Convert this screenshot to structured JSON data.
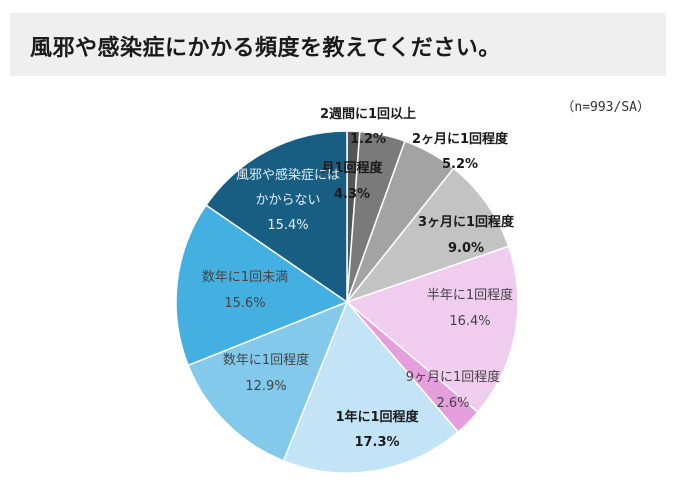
{
  "title": "風邪や感染症にかかる頻度を教えてください。",
  "note": "（n=993/SA）",
  "chart_data": {
    "type": "pie",
    "start": "12 o'clock",
    "direction": "clockwise",
    "slices": [
      {
        "label": "2週間に1回以上",
        "value": 1.2,
        "display": "1.2%",
        "color": "#555555",
        "label_color": "#1a1a1a",
        "bold": true
      },
      {
        "label": "月1回程度",
        "value": 4.3,
        "display": "4.3%",
        "color": "#7a7a7a",
        "label_color": "#1a1a1a",
        "bold": true
      },
      {
        "label": "2ヶ月に1回程度",
        "value": 5.2,
        "display": "5.2%",
        "color": "#a3a3a3",
        "label_color": "#1a1a1a",
        "bold": true
      },
      {
        "label": "3ヶ月に1回程度",
        "value": 9.0,
        "display": "9.0%",
        "color": "#c3c3c3",
        "label_color": "#1a1a1a",
        "bold": true
      },
      {
        "label": "半年に1回程度",
        "value": 16.4,
        "display": "16.4%",
        "color": "#f0cdee",
        "label_color": "#444444",
        "bold": false
      },
      {
        "label": "9ヶ月に1回程度",
        "value": 2.6,
        "display": "2.6%",
        "color": "#e59fdc",
        "label_color": "#444444",
        "bold": false
      },
      {
        "label": "1年に1回程度",
        "value": 17.3,
        "display": "17.3%",
        "color": "#c3e4f6",
        "label_color": "#1a1a1a",
        "bold": true
      },
      {
        "label": "数年に1回程度",
        "value": 12.9,
        "display": "12.9%",
        "color": "#82c9ec",
        "label_color": "#444444",
        "bold": false
      },
      {
        "label": "数年に1回未満",
        "value": 15.6,
        "display": "15.6%",
        "color": "#44b0e2",
        "label_color": "#444444",
        "bold": false
      },
      {
        "label": "風邪や感染症には\nかからない",
        "value": 15.4,
        "display": "15.4%",
        "color": "#175e82",
        "label_color": "#e6eef3",
        "bold": false
      }
    ]
  }
}
